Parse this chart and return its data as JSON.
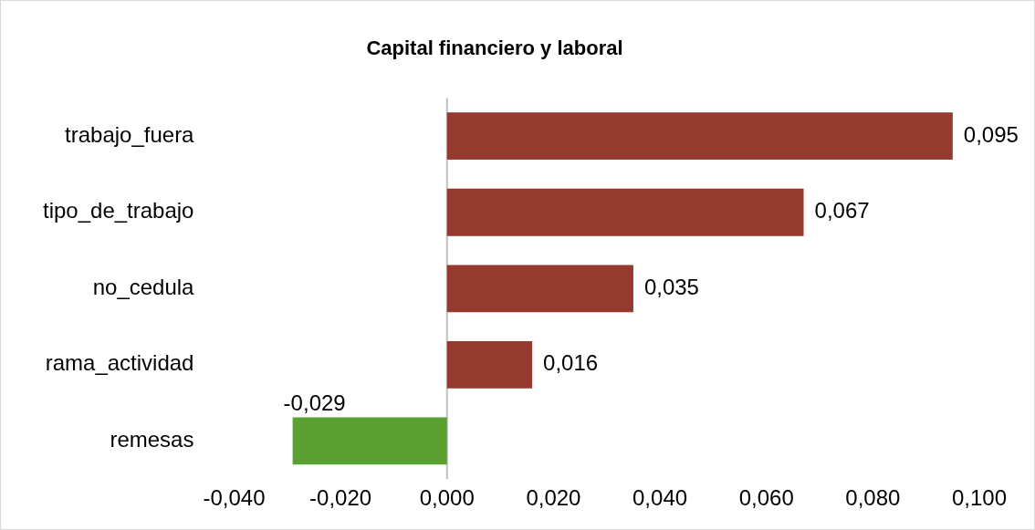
{
  "chart_data": {
    "type": "bar",
    "orientation": "horizontal",
    "title": "Capital financiero y laboral",
    "categories": [
      "trabajo_fuera",
      "tipo_de_trabajo",
      "no_cedula",
      "rama_actividad",
      "remesas"
    ],
    "values": [
      0.095,
      0.067,
      0.035,
      0.016,
      -0.029
    ],
    "colors": [
      "#953a2e",
      "#953a2e",
      "#953a2e",
      "#953a2e",
      "#5ba132"
    ],
    "value_labels": [
      "0,095",
      "0,067",
      "0,035",
      "0,016",
      "-0,029"
    ],
    "xlim": [
      -0.04,
      0.1
    ],
    "xticks": [
      {
        "value": -0.04,
        "label": "-0,040"
      },
      {
        "value": -0.02,
        "label": "-0,020"
      },
      {
        "value": 0,
        "label": "0,000"
      },
      {
        "value": 0.02,
        "label": "0,020"
      },
      {
        "value": 0.04,
        "label": "0,040"
      },
      {
        "value": 0.06,
        "label": "0,060"
      },
      {
        "value": 0.08,
        "label": "0,080"
      },
      {
        "value": 0.1,
        "label": "0,100"
      }
    ],
    "ref_lines": [
      {
        "axis": "x",
        "value": 0,
        "color": "#bfbfbf"
      }
    ],
    "grid": false,
    "legend": false
  }
}
